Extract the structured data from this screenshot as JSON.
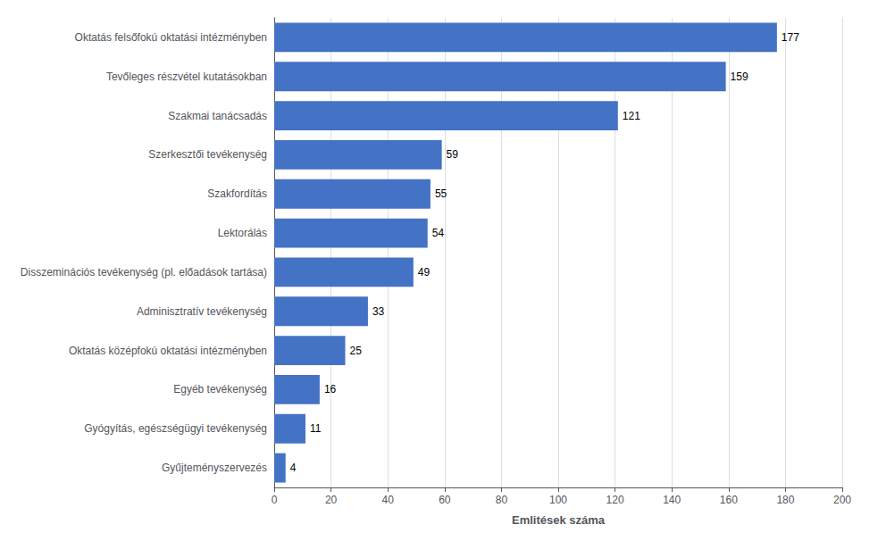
{
  "chart_data": {
    "type": "bar",
    "orientation": "horizontal",
    "categories": [
      "Gyűjteményszervezés",
      "Gyógyítás, egészségügyi tevékenység",
      "Egyéb tevékenység",
      "Oktatás középfokú oktatási intézményben",
      "Adminisztratív tevékenység",
      "Disszeminációs tevékenység (pl. előadások tartása)",
      "Lektorálás",
      "Szakfordítás",
      "Szerkesztői tevékenység",
      "Szakmai tanácsadás",
      "Tevőleges részvétel kutatásokban",
      "Oktatás felsőfokú oktatási intézményben"
    ],
    "values": [
      4,
      11,
      16,
      25,
      33,
      49,
      54,
      55,
      59,
      121,
      159,
      177
    ],
    "color": "#4472C4",
    "xlabel": "Emlitések száma",
    "xlim": [
      0,
      200
    ],
    "xticks": [
      0,
      20,
      40,
      60,
      80,
      100,
      120,
      140,
      160,
      180,
      200
    ],
    "grid": true,
    "data_labels": true
  }
}
